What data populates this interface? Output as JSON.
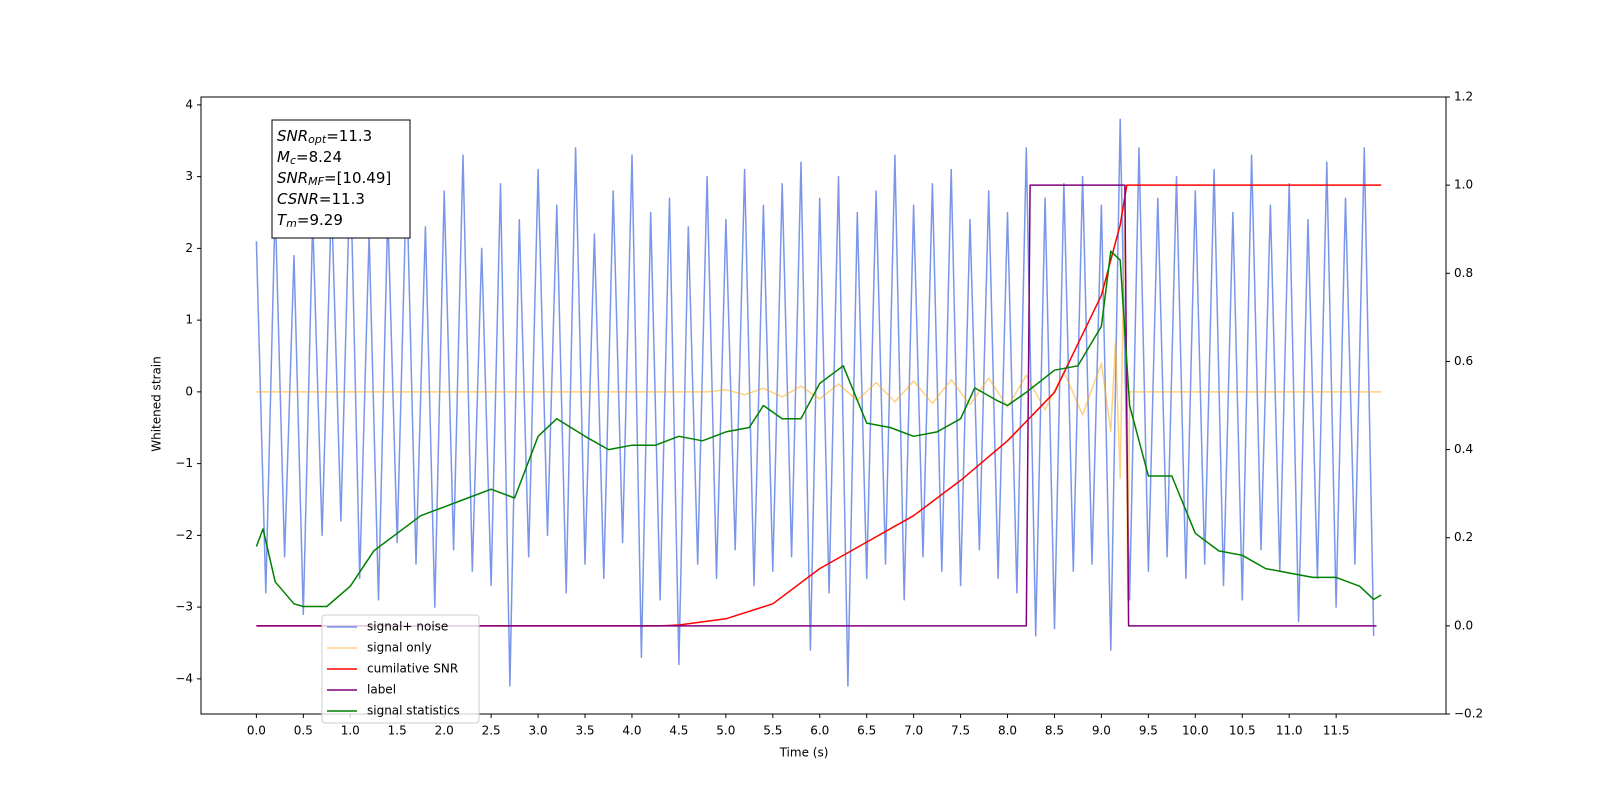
{
  "chart_data": {
    "type": "line",
    "xlabel": "Time (s)",
    "ylabel": "Whitened strain",
    "xlim": [
      -0.59,
      12.67
    ],
    "ylim": [
      -4.49,
      4.11
    ],
    "y2lim": [
      -0.2,
      1.2
    ],
    "xticks": [
      {
        "value": 0,
        "label": "0.0"
      },
      0.5,
      {
        "value": 1,
        "label": "1.0"
      },
      1.5,
      {
        "value": 2,
        "label": "2.0"
      },
      2.5,
      {
        "value": 3,
        "label": "3.0"
      },
      3.5,
      {
        "value": 4,
        "label": "4.0"
      },
      4.5,
      {
        "value": 5,
        "label": "5.0"
      },
      5.5,
      {
        "value": 6,
        "label": "6.0"
      },
      6.5,
      {
        "value": 7,
        "label": "7.0"
      },
      7.5,
      {
        "value": 8,
        "label": "8.0"
      },
      8.5,
      {
        "value": 9,
        "label": "9.0"
      },
      9.5,
      {
        "value": 10,
        "label": "10.0"
      },
      10.5,
      {
        "value": 11,
        "label": "11.0"
      },
      11.5
    ],
    "yticks": [
      {
        "value": -4,
        "label": "−4"
      },
      {
        "value": -3,
        "label": "−3"
      },
      {
        "value": -2,
        "label": "−2"
      },
      {
        "value": -1,
        "label": "−1"
      },
      0,
      1,
      2,
      3,
      4
    ],
    "y2ticks": [
      {
        "value": -0.2,
        "label": "−0.2"
      },
      {
        "value": 0,
        "label": "0.0"
      },
      {
        "value": 0.2,
        "label": "0.2"
      },
      {
        "value": 0.4,
        "label": "0.4"
      },
      {
        "value": 0.6,
        "label": "0.6"
      },
      {
        "value": 0.8,
        "label": "0.8"
      },
      {
        "value": 1,
        "label": "1.0"
      },
      {
        "value": 1.2,
        "label": "1.2"
      }
    ],
    "grid": false,
    "legend": "lower left",
    "annotation": [
      {
        "main": "SNR",
        "sub": "opt",
        "rest": "=11.3"
      },
      {
        "main": "M",
        "sub": "c",
        "rest": "=8.24"
      },
      {
        "main": "SNR",
        "sub": "MF",
        "rest": "=[10.49]"
      },
      {
        "main": "CSNR",
        "sub": "",
        "rest": "=11.3"
      },
      {
        "main": "T",
        "sub": "m",
        "rest": "=9.29"
      }
    ],
    "series": [
      {
        "name": "signal+ noise",
        "color": "#4169e1",
        "opacity": 0.7,
        "x": [
          0.0,
          0.1,
          0.2,
          0.3,
          0.4,
          0.5,
          0.6,
          0.7,
          0.8,
          0.9,
          1.0,
          1.1,
          1.2,
          1.3,
          1.4,
          1.5,
          1.6,
          1.7,
          1.8,
          1.9,
          2.0,
          2.1,
          2.2,
          2.3,
          2.4,
          2.5,
          2.6,
          2.7,
          2.8,
          2.9,
          3.0,
          3.1,
          3.2,
          3.3,
          3.4,
          3.5,
          3.6,
          3.7,
          3.8,
          3.9,
          4.0,
          4.1,
          4.2,
          4.3,
          4.4,
          4.5,
          4.6,
          4.7,
          4.8,
          4.9,
          5.0,
          5.1,
          5.2,
          5.3,
          5.4,
          5.5,
          5.6,
          5.7,
          5.8,
          5.9,
          6.0,
          6.1,
          6.2,
          6.3,
          6.4,
          6.5,
          6.6,
          6.7,
          6.8,
          6.9,
          7.0,
          7.1,
          7.2,
          7.3,
          7.4,
          7.5,
          7.6,
          7.7,
          7.8,
          7.9,
          8.0,
          8.1,
          8.2,
          8.3,
          8.4,
          8.5,
          8.6,
          8.7,
          8.8,
          8.9,
          9.0,
          9.1,
          9.2,
          9.3,
          9.4,
          9.5,
          9.6,
          9.7,
          9.8,
          9.9,
          10.0,
          10.1,
          10.2,
          10.3,
          10.4,
          10.5,
          10.6,
          10.7,
          10.8,
          10.9,
          11.0,
          11.1,
          11.2,
          11.3,
          11.4,
          11.5,
          11.6,
          11.7,
          11.8,
          11.9
        ],
        "values": [
          2.1,
          -2.8,
          2.6,
          -2.3,
          1.9,
          -3.1,
          2.4,
          -2.0,
          2.7,
          -1.8,
          3.2,
          -2.6,
          2.2,
          -2.9,
          2.5,
          -2.1,
          3.0,
          -2.4,
          2.3,
          -3.0,
          2.8,
          -2.2,
          3.3,
          -2.5,
          2.0,
          -2.7,
          2.9,
          -4.1,
          2.4,
          -2.3,
          3.1,
          -2.0,
          2.6,
          -2.8,
          3.4,
          -2.4,
          2.2,
          -2.6,
          2.8,
          -2.1,
          3.3,
          -3.7,
          2.5,
          -2.9,
          2.7,
          -3.8,
          2.3,
          -2.4,
          3.0,
          -2.6,
          2.4,
          -2.2,
          3.1,
          -2.7,
          2.6,
          -2.5,
          2.9,
          -2.3,
          3.2,
          -3.6,
          2.7,
          -2.8,
          3.0,
          -4.1,
          2.5,
          -2.6,
          2.8,
          -2.4,
          3.3,
          -2.9,
          2.6,
          -2.3,
          2.9,
          -2.5,
          3.1,
          -2.7,
          2.4,
          -2.2,
          2.8,
          -2.6,
          2.5,
          -2.8,
          3.4,
          -3.4,
          2.7,
          -3.3,
          2.9,
          -2.5,
          3.0,
          -2.4,
          2.6,
          -3.6,
          3.8,
          -2.9,
          3.4,
          -2.5,
          2.7,
          -2.3,
          3.0,
          -2.6,
          2.8,
          -2.4,
          3.1,
          -2.7,
          2.5,
          -2.9,
          3.3,
          -2.2,
          2.6,
          -2.5,
          2.9,
          -3.2,
          2.4,
          -2.6,
          3.2,
          -3.0,
          2.7,
          -2.4,
          3.4,
          -3.4
        ]
      },
      {
        "name": "signal only",
        "color": "#ffa500",
        "opacity": 0.5,
        "x": [
          0.0,
          4.8,
          5.0,
          5.2,
          5.4,
          5.6,
          5.8,
          6.0,
          6.2,
          6.4,
          6.6,
          6.8,
          7.0,
          7.2,
          7.4,
          7.6,
          7.8,
          8.0,
          8.2,
          8.4,
          8.6,
          8.8,
          9.0,
          9.1,
          9.15,
          9.2,
          9.25,
          9.28,
          9.3,
          11.98
        ],
        "values": [
          0,
          0,
          0.03,
          -0.04,
          0.05,
          -0.07,
          0.08,
          -0.1,
          0.11,
          -0.12,
          0.13,
          -0.14,
          0.15,
          -0.16,
          0.17,
          -0.18,
          0.19,
          -0.21,
          0.23,
          -0.25,
          0.28,
          -0.32,
          0.4,
          -0.55,
          0.7,
          -1.2,
          2.8,
          -2.9,
          0,
          0
        ]
      },
      {
        "name": "cumilative SNR",
        "color": "#ff0000",
        "axis": "y2",
        "x": [
          0.0,
          4.3,
          4.5,
          5.0,
          5.5,
          6.0,
          6.5,
          7.0,
          7.5,
          8.0,
          8.5,
          9.0,
          9.2,
          9.27,
          11.98
        ],
        "values": [
          0,
          0,
          0.002,
          0.016,
          0.05,
          0.13,
          0.19,
          0.25,
          0.33,
          0.42,
          0.53,
          0.75,
          0.91,
          1.0,
          1.0
        ]
      },
      {
        "name": "label",
        "color": "#800080",
        "axis": "y2",
        "x": [
          0.0,
          8.2,
          8.24,
          9.25,
          9.29,
          11.93
        ],
        "values": [
          0,
          0,
          1,
          1,
          0,
          0
        ]
      },
      {
        "name": "signal statistics",
        "color": "#008000",
        "axis": "y2",
        "x": [
          0.0,
          0.07,
          0.2,
          0.4,
          0.5,
          0.75,
          1.0,
          1.25,
          1.5,
          1.75,
          2.0,
          2.25,
          2.5,
          2.75,
          3.0,
          3.2,
          3.5,
          3.75,
          4.0,
          4.25,
          4.5,
          4.75,
          5.0,
          5.25,
          5.4,
          5.6,
          5.8,
          6.0,
          6.25,
          6.5,
          6.75,
          7.0,
          7.25,
          7.5,
          7.65,
          7.9,
          8.0,
          8.2,
          8.5,
          8.75,
          9.0,
          9.1,
          9.2,
          9.3,
          9.5,
          9.75,
          10.0,
          10.25,
          10.5,
          10.75,
          11.0,
          11.25,
          11.5,
          11.75,
          11.9,
          11.98
        ],
        "values": [
          0.18,
          0.22,
          0.1,
          0.05,
          0.044,
          0.044,
          0.09,
          0.17,
          0.21,
          0.25,
          0.27,
          0.29,
          0.31,
          0.29,
          0.43,
          0.47,
          0.43,
          0.4,
          0.41,
          0.41,
          0.43,
          0.42,
          0.44,
          0.45,
          0.5,
          0.47,
          0.47,
          0.55,
          0.59,
          0.46,
          0.45,
          0.43,
          0.44,
          0.47,
          0.54,
          0.51,
          0.5,
          0.53,
          0.58,
          0.59,
          0.68,
          0.85,
          0.83,
          0.5,
          0.34,
          0.34,
          0.21,
          0.17,
          0.16,
          0.13,
          0.12,
          0.11,
          0.11,
          0.09,
          0.06,
          0.07
        ]
      }
    ]
  }
}
